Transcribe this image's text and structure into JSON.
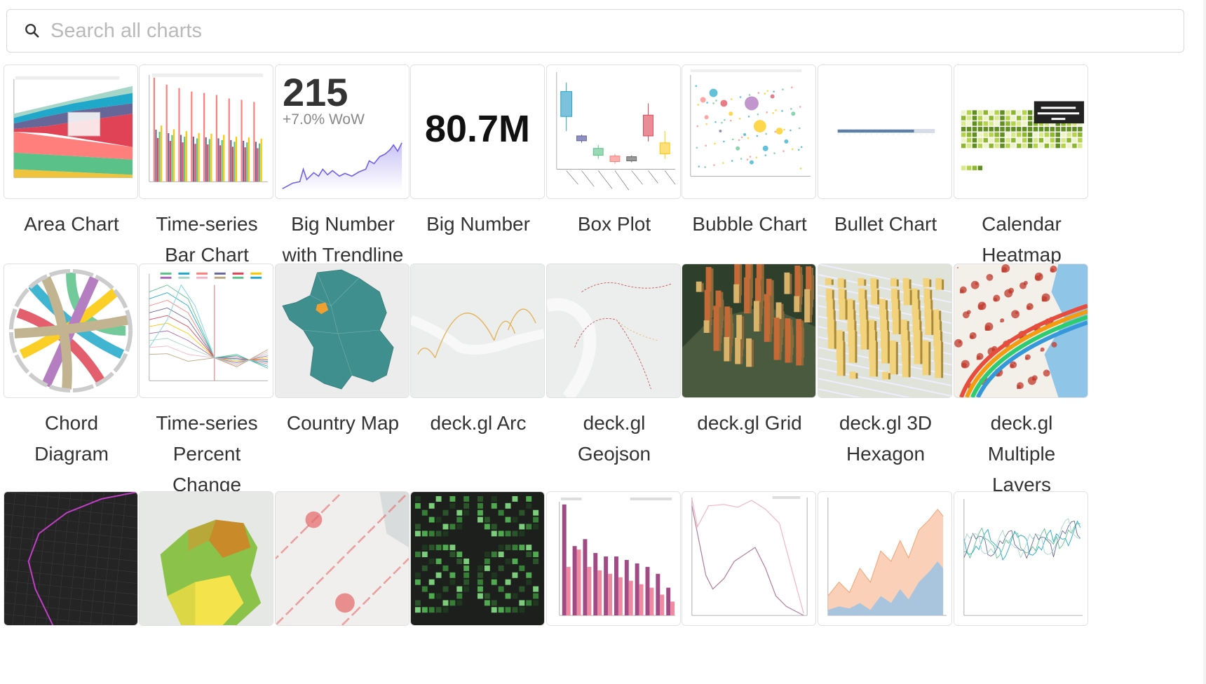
{
  "search": {
    "placeholder": "Search all charts",
    "value": ""
  },
  "thumbnails": {
    "big_number_trendline": {
      "number": "215",
      "sub": "+7.0% WoW"
    },
    "big_number": {
      "number": "80.7M"
    }
  },
  "charts": [
    {
      "id": "area-chart",
      "lines": [
        "Area Chart"
      ]
    },
    {
      "id": "time-series-bar-chart",
      "lines": [
        "Time-series",
        "Bar Chart"
      ]
    },
    {
      "id": "big-number-with-trendline",
      "lines": [
        "Big Number",
        "with Trendline"
      ]
    },
    {
      "id": "big-number",
      "lines": [
        "Big Number"
      ]
    },
    {
      "id": "box-plot",
      "lines": [
        "Box Plot"
      ]
    },
    {
      "id": "bubble-chart",
      "lines": [
        "Bubble Chart"
      ]
    },
    {
      "id": "bullet-chart",
      "lines": [
        "Bullet Chart"
      ]
    },
    {
      "id": "calendar-heatmap",
      "lines": [
        "Calendar",
        "Heatmap"
      ]
    },
    {
      "id": "chord-diagram",
      "lines": [
        "Chord",
        "Diagram"
      ]
    },
    {
      "id": "time-series-percent-change",
      "lines": [
        "Time-series",
        "Percent",
        "Change"
      ]
    },
    {
      "id": "country-map",
      "lines": [
        "Country Map"
      ]
    },
    {
      "id": "deckgl-arc",
      "lines": [
        "deck.gl Arc"
      ]
    },
    {
      "id": "deckgl-geojson",
      "lines": [
        "deck.gl",
        "Geojson"
      ]
    },
    {
      "id": "deckgl-grid",
      "lines": [
        "deck.gl Grid"
      ]
    },
    {
      "id": "deckgl-3d-hexagon",
      "lines": [
        "deck.gl 3D",
        "Hexagon"
      ]
    },
    {
      "id": "deckgl-multiple-layers",
      "lines": [
        "deck.gl",
        "Multiple",
        "Layers"
      ]
    },
    {
      "id": "deckgl-path",
      "lines": []
    },
    {
      "id": "deckgl-polygon",
      "lines": []
    },
    {
      "id": "deckgl-scatterplot",
      "lines": []
    },
    {
      "id": "deckgl-screen-grid",
      "lines": []
    },
    {
      "id": "bar-chart",
      "lines": []
    },
    {
      "id": "line-chart",
      "lines": []
    },
    {
      "id": "area-chart-2",
      "lines": []
    },
    {
      "id": "time-series-trend",
      "lines": []
    }
  ],
  "colors": {
    "accent": "#20a7c9",
    "border": "#e0e0e0",
    "text": "#333333"
  }
}
